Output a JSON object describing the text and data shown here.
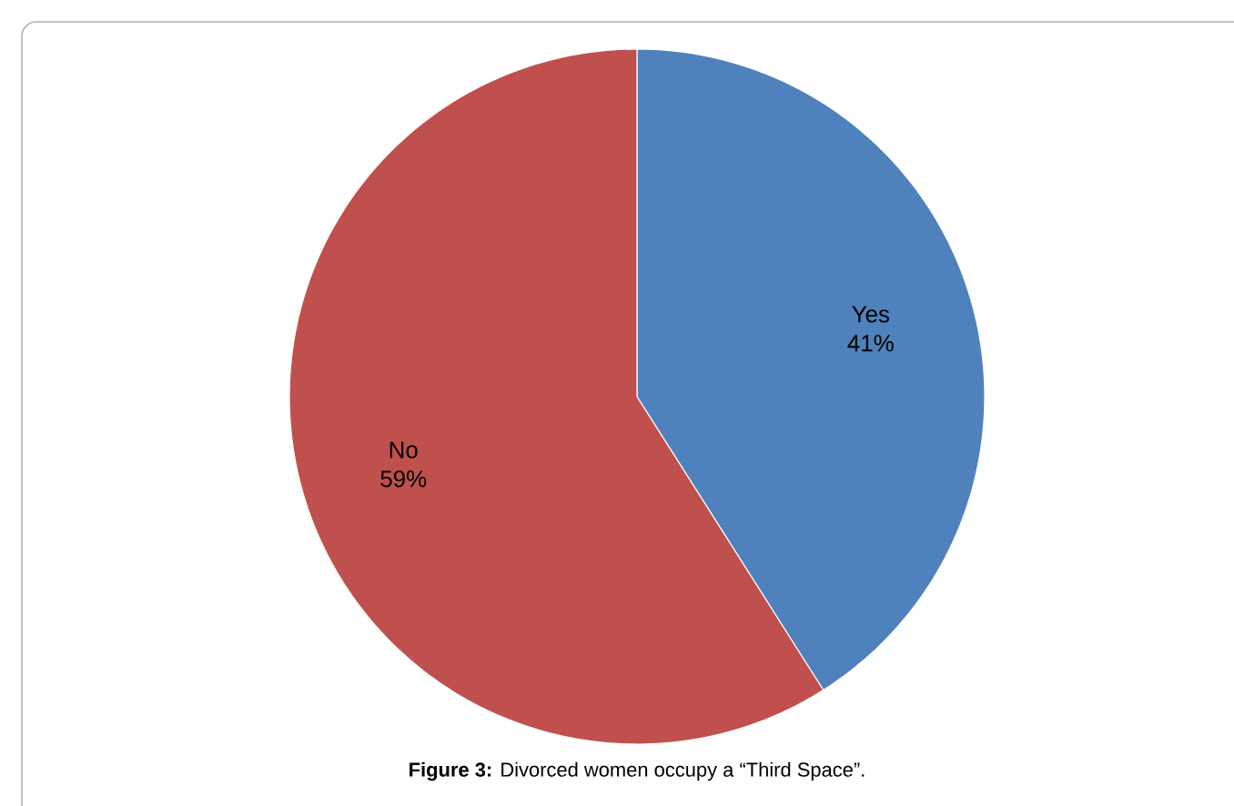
{
  "chart_data": {
    "type": "pie",
    "categories": [
      "Yes",
      "No"
    ],
    "values": [
      41,
      59
    ],
    "colors": [
      "#4f81bd",
      "#c0504d"
    ],
    "value_labels": [
      "41%",
      "59%"
    ],
    "annotations": [
      "**Figure 3:** Divorced women occupy a “Third Space”."
    ]
  }
}
